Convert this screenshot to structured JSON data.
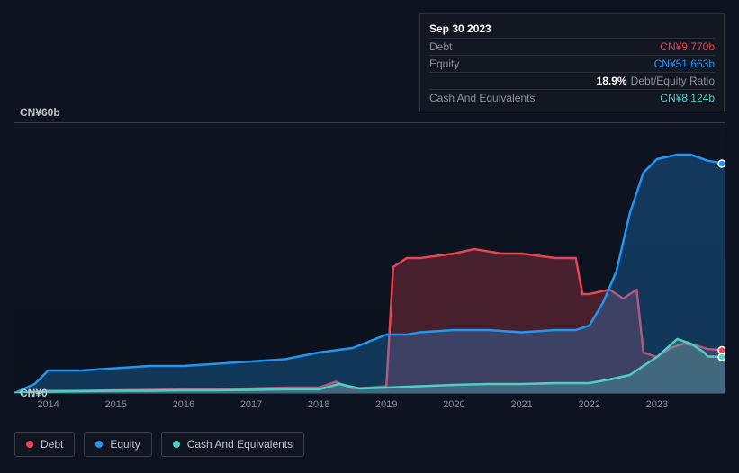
{
  "tooltip": {
    "date": "Sep 30 2023",
    "rows": [
      {
        "label": "Debt",
        "value": "CN¥9.770b",
        "cls": "tooltip-value-debt"
      },
      {
        "label": "Equity",
        "value": "CN¥51.663b",
        "cls": "tooltip-value-equity"
      },
      {
        "label_blank": true,
        "ratio": "18.9%",
        "ratio_label": "Debt/Equity Ratio"
      },
      {
        "label": "Cash And Equivalents",
        "value": "CN¥8.124b",
        "cls": "tooltip-value-cash"
      }
    ]
  },
  "chart": {
    "type": "area",
    "y_top_label": "CN¥60b",
    "y_bottom_label": "CN¥0",
    "y_max": 60,
    "x_labels": [
      "2014",
      "2015",
      "2016",
      "2017",
      "2018",
      "2019",
      "2020",
      "2021",
      "2022",
      "2023"
    ],
    "x_range": [
      2013.5,
      2024.0
    ],
    "colors": {
      "debt": "#e64552",
      "equity": "#2196f3",
      "cash": "#4dd0c3",
      "background": "#0d1320",
      "grid": "#3a3f47"
    },
    "fill_opacity": 0.28,
    "line_width": 2.5,
    "series": {
      "debt": [
        [
          2013.5,
          0
        ],
        [
          2014,
          0.5
        ],
        [
          2014.5,
          0.5
        ],
        [
          2015,
          0.6
        ],
        [
          2015.5,
          0.7
        ],
        [
          2016,
          0.8
        ],
        [
          2016.5,
          0.8
        ],
        [
          2017,
          1.0
        ],
        [
          2017.5,
          1.2
        ],
        [
          2018,
          1.2
        ],
        [
          2018.25,
          2.5
        ],
        [
          2018.5,
          1.0
        ],
        [
          2018.75,
          1.2
        ],
        [
          2019,
          1.5
        ],
        [
          2019.1,
          28
        ],
        [
          2019.3,
          30
        ],
        [
          2019.5,
          30
        ],
        [
          2020,
          31
        ],
        [
          2020.3,
          32
        ],
        [
          2020.7,
          31
        ],
        [
          2021,
          31
        ],
        [
          2021.5,
          30
        ],
        [
          2021.8,
          30
        ],
        [
          2021.9,
          22
        ],
        [
          2022,
          22
        ],
        [
          2022.3,
          23
        ],
        [
          2022.5,
          21
        ],
        [
          2022.7,
          23
        ],
        [
          2022.8,
          9
        ],
        [
          2023,
          8
        ],
        [
          2023.2,
          10
        ],
        [
          2023.4,
          11
        ],
        [
          2023.6,
          10.5
        ],
        [
          2023.75,
          9.77
        ],
        [
          2024,
          9.5
        ]
      ],
      "equity": [
        [
          2013.5,
          0
        ],
        [
          2013.8,
          2
        ],
        [
          2014,
          5
        ],
        [
          2014.5,
          5
        ],
        [
          2015,
          5.5
        ],
        [
          2015.5,
          6
        ],
        [
          2016,
          6
        ],
        [
          2016.5,
          6.5
        ],
        [
          2017,
          7
        ],
        [
          2017.5,
          7.5
        ],
        [
          2018,
          9
        ],
        [
          2018.5,
          10
        ],
        [
          2019,
          13
        ],
        [
          2019.3,
          13
        ],
        [
          2019.5,
          13.5
        ],
        [
          2020,
          14
        ],
        [
          2020.5,
          14
        ],
        [
          2021,
          13.5
        ],
        [
          2021.5,
          14
        ],
        [
          2021.8,
          14
        ],
        [
          2022,
          15
        ],
        [
          2022.2,
          20
        ],
        [
          2022.4,
          27
        ],
        [
          2022.6,
          40
        ],
        [
          2022.8,
          49
        ],
        [
          2023,
          52
        ],
        [
          2023.3,
          53
        ],
        [
          2023.5,
          53
        ],
        [
          2023.75,
          51.66
        ],
        [
          2024,
          51
        ]
      ],
      "cash": [
        [
          2013.5,
          0
        ],
        [
          2014,
          0.3
        ],
        [
          2014.5,
          0.4
        ],
        [
          2015,
          0.5
        ],
        [
          2015.5,
          0.5
        ],
        [
          2016,
          0.6
        ],
        [
          2016.5,
          0.6
        ],
        [
          2017,
          0.7
        ],
        [
          2017.5,
          0.8
        ],
        [
          2018,
          0.8
        ],
        [
          2018.3,
          2
        ],
        [
          2018.6,
          1
        ],
        [
          2019,
          1.2
        ],
        [
          2019.5,
          1.5
        ],
        [
          2020,
          1.8
        ],
        [
          2020.5,
          2
        ],
        [
          2021,
          2
        ],
        [
          2021.5,
          2.2
        ],
        [
          2022,
          2.2
        ],
        [
          2022.3,
          3
        ],
        [
          2022.6,
          4
        ],
        [
          2022.8,
          6
        ],
        [
          2023,
          8
        ],
        [
          2023.3,
          12
        ],
        [
          2023.5,
          11
        ],
        [
          2023.7,
          9
        ],
        [
          2023.75,
          8.12
        ],
        [
          2024,
          8
        ]
      ]
    },
    "marker": {
      "x": 2024.0,
      "y_debt": 9.5,
      "y_equity": 51,
      "y_cash": 8
    }
  },
  "legend": [
    {
      "label": "Debt",
      "color": "#e64552",
      "name": "legend-debt"
    },
    {
      "label": "Equity",
      "color": "#2196f3",
      "name": "legend-equity"
    },
    {
      "label": "Cash And Equivalents",
      "color": "#4dd0c3",
      "name": "legend-cash"
    }
  ]
}
